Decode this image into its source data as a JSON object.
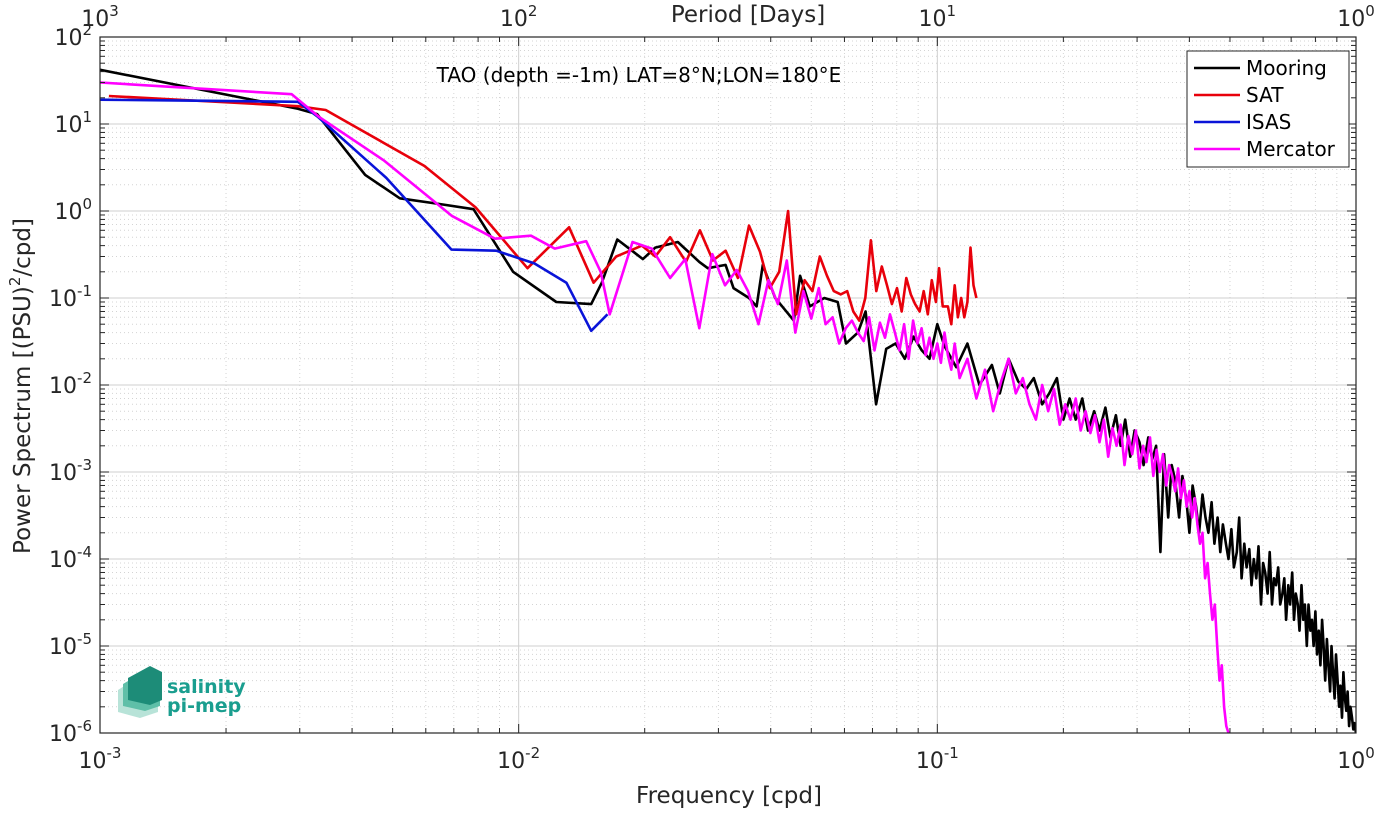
{
  "chart_data": {
    "type": "line",
    "title": "TAO (depth =-1m) LAT=8°N;LON=180°E",
    "xlabel": "Frequency [cpd]",
    "ylabel_main": "Power Spectrum [(PSU)",
    "ylabel_sup": "2",
    "ylabel_tail": "/cpd]",
    "x2label": "Period [Days]",
    "xscale": "log",
    "yscale": "log",
    "xlim": [
      0.001,
      1
    ],
    "ylim": [
      1e-06,
      100
    ],
    "grid": true,
    "minor_grid": true,
    "legend_position": "top-right",
    "x_ticks": [
      {
        "value": 0.001,
        "base": "10",
        "exp": "-3"
      },
      {
        "value": 0.01,
        "base": "10",
        "exp": "-2"
      },
      {
        "value": 0.1,
        "base": "10",
        "exp": "-1"
      },
      {
        "value": 1,
        "base": "10",
        "exp": "0"
      }
    ],
    "x2_ticks": [
      {
        "value": 0.001,
        "base": "10",
        "exp": "3"
      },
      {
        "value": 0.01,
        "base": "10",
        "exp": "2"
      },
      {
        "value": 0.1,
        "base": "10",
        "exp": "1"
      },
      {
        "value": 1,
        "base": "10",
        "exp": "0"
      }
    ],
    "y_ticks": [
      {
        "value": 100,
        "base": "10",
        "exp": "2"
      },
      {
        "value": 10,
        "base": "10",
        "exp": "1"
      },
      {
        "value": 1,
        "base": "10",
        "exp": "0"
      },
      {
        "value": 0.1,
        "base": "10",
        "exp": "-1"
      },
      {
        "value": 0.01,
        "base": "10",
        "exp": "-2"
      },
      {
        "value": 0.001,
        "base": "10",
        "exp": "-3"
      },
      {
        "value": 0.0001,
        "base": "10",
        "exp": "-4"
      },
      {
        "value": 1e-05,
        "base": "10",
        "exp": "-5"
      },
      {
        "value": 1e-06,
        "base": "10",
        "exp": "-6"
      }
    ],
    "series": [
      {
        "name": "Mooring",
        "color": "#000000",
        "x": [
          0.001,
          0.00297,
          0.0033,
          0.0043,
          0.0052,
          0.0065,
          0.0078,
          0.0097,
          0.0123,
          0.0149,
          0.0158,
          0.0172,
          0.0198,
          0.0212,
          0.024,
          0.027,
          0.0283,
          0.0312,
          0.0326,
          0.0355,
          0.037,
          0.0383,
          0.041,
          0.0426,
          0.0454,
          0.047,
          0.0496,
          0.0537,
          0.0578,
          0.0605,
          0.0646,
          0.0674,
          0.0714,
          0.0755,
          0.0795,
          0.0836,
          0.0877,
          0.0918,
          0.0958,
          0.1,
          0.104,
          0.111,
          0.118,
          0.126,
          0.135,
          0.141,
          0.148,
          0.156,
          0.163,
          0.17,
          0.178,
          0.185,
          0.193,
          0.2,
          0.207,
          0.214,
          0.222,
          0.229,
          0.237,
          0.244,
          0.252,
          0.259,
          0.267,
          0.274,
          0.281,
          0.289,
          0.296,
          0.304,
          0.311,
          0.319,
          0.326,
          0.333,
          0.341,
          0.348,
          0.356,
          0.363,
          0.37,
          0.378,
          0.385,
          0.393,
          0.4,
          0.407,
          0.415,
          0.422,
          0.43,
          0.437,
          0.444,
          0.452,
          0.459,
          0.467,
          0.474,
          0.481,
          0.489,
          0.496,
          0.504,
          0.511,
          0.519,
          0.526,
          0.533,
          0.541,
          0.548,
          0.556,
          0.563,
          0.57,
          0.578,
          0.585,
          0.593,
          0.6,
          0.607,
          0.615,
          0.622,
          0.63,
          0.637,
          0.644,
          0.652,
          0.659,
          0.667,
          0.674,
          0.681,
          0.689,
          0.696,
          0.704,
          0.711,
          0.718,
          0.726,
          0.733,
          0.741,
          0.748,
          0.755,
          0.763,
          0.77,
          0.778,
          0.785,
          0.792,
          0.8,
          0.807,
          0.815,
          0.822,
          0.83,
          0.837,
          0.844,
          0.852,
          0.859,
          0.867,
          0.874,
          0.881,
          0.889,
          0.896,
          0.904,
          0.911,
          0.918,
          0.926,
          0.933,
          0.941,
          0.948,
          0.955,
          0.963,
          0.97,
          0.978,
          0.985,
          0.992,
          1.0
        ],
        "y": [
          42,
          15,
          13,
          2.6,
          1.4,
          1.2,
          1.05,
          0.2,
          0.09,
          0.085,
          0.15,
          0.47,
          0.28,
          0.38,
          0.44,
          0.26,
          0.22,
          0.24,
          0.13,
          0.1,
          0.08,
          0.24,
          0.1,
          0.08,
          0.055,
          0.18,
          0.08,
          0.1,
          0.09,
          0.03,
          0.04,
          0.07,
          0.006,
          0.026,
          0.03,
          0.02,
          0.036,
          0.025,
          0.02,
          0.05,
          0.028,
          0.016,
          0.03,
          0.01,
          0.017,
          0.008,
          0.02,
          0.011,
          0.009,
          0.012,
          0.006,
          0.008,
          0.012,
          0.004,
          0.007,
          0.004,
          0.007,
          0.003,
          0.005,
          0.003,
          0.0055,
          0.0025,
          0.0045,
          0.002,
          0.004,
          0.0015,
          0.003,
          0.0022,
          0.0012,
          0.0025,
          0.0014,
          0.002,
          0.00012,
          0.0016,
          0.0003,
          0.0012,
          0.0008,
          0.0003,
          0.0009,
          0.0005,
          0.0002,
          0.0007,
          0.0004,
          0.0002,
          0.00055,
          0.0003,
          0.0002,
          0.00045,
          0.00015,
          0.0003,
          0.00012,
          0.00025,
          0.00015,
          0.0001,
          0.00022,
          8e-05,
          0.00012,
          0.0003,
          6e-05,
          0.00015,
          8e-05,
          0.00013,
          5e-05,
          0.0001,
          6e-05,
          0.00014,
          3e-05,
          9e-05,
          7e-05,
          4e-05,
          0.00012,
          3e-05,
          6e-05,
          5e-05,
          8e-05,
          3e-05,
          4e-05,
          6e-05,
          2e-05,
          5e-05,
          3e-05,
          7e-05,
          2e-05,
          4e-05,
          3e-05,
          1.5e-05,
          5e-05,
          2e-05,
          3e-05,
          1e-05,
          3e-05,
          1.5e-05,
          2e-05,
          1e-05,
          2.5e-05,
          8e-06,
          1.5e-05,
          6e-06,
          2e-05,
          1e-05,
          4e-06,
          1.2e-05,
          6e-06,
          3e-06,
          1e-05,
          5e-06,
          2.5e-06,
          8e-06,
          4e-06,
          2e-06,
          3.5e-06,
          1.5e-06,
          5e-06,
          2.5e-06,
          1.8e-06,
          3e-06,
          1.2e-06,
          2e-06,
          1.5e-06,
          1.1e-06,
          1.3e-06,
          1e-06
        ]
      },
      {
        "name": "SAT",
        "color": "#e8000b",
        "x": [
          0.00105,
          0.00297,
          0.00346,
          0.00595,
          0.00789,
          0.0105,
          0.0132,
          0.0151,
          0.0171,
          0.0197,
          0.0212,
          0.023,
          0.0251,
          0.0271,
          0.0291,
          0.0312,
          0.0334,
          0.0355,
          0.0377,
          0.0398,
          0.0419,
          0.044,
          0.046,
          0.0482,
          0.0503,
          0.0524,
          0.0545,
          0.0566,
          0.0588,
          0.0609,
          0.063,
          0.0651,
          0.0673,
          0.0694,
          0.0715,
          0.0737,
          0.0758,
          0.0779,
          0.0801,
          0.0822,
          0.0843,
          0.0864,
          0.0885,
          0.0907,
          0.0928,
          0.0949,
          0.097,
          0.0992,
          0.101,
          0.103,
          0.106,
          0.108,
          0.11,
          0.112,
          0.114,
          0.116,
          0.118,
          0.12,
          0.122,
          0.124
        ],
        "y": [
          21,
          16,
          14.5,
          3.3,
          1.1,
          0.22,
          0.65,
          0.15,
          0.3,
          0.4,
          0.3,
          0.5,
          0.26,
          0.6,
          0.27,
          0.35,
          0.17,
          0.68,
          0.34,
          0.13,
          0.2,
          1,
          0.065,
          0.16,
          0.12,
          0.3,
          0.18,
          0.12,
          0.11,
          0.12,
          0.07,
          0.055,
          0.1,
          0.46,
          0.12,
          0.23,
          0.14,
          0.085,
          0.13,
          0.07,
          0.17,
          0.11,
          0.085,
          0.07,
          0.12,
          0.065,
          0.16,
          0.09,
          0.22,
          0.08,
          0.08,
          0.05,
          0.14,
          0.06,
          0.1,
          0.06,
          0.09,
          0.38,
          0.14,
          0.1
        ]
      },
      {
        "name": "ISAS",
        "color": "#0a14d8",
        "x": [
          0.001,
          0.00297,
          0.00332,
          0.00483,
          0.00691,
          0.00884,
          0.0109,
          0.013,
          0.0149,
          0.0163
        ],
        "y": [
          19,
          18,
          12,
          2.4,
          0.36,
          0.35,
          0.25,
          0.15,
          0.042,
          0.065
        ]
      },
      {
        "name": "Mercator",
        "color": "#ff00ff",
        "x": [
          0.001,
          0.00287,
          0.00334,
          0.00477,
          0.00692,
          0.00878,
          0.0107,
          0.0122,
          0.0145,
          0.0157,
          0.0165,
          0.0187,
          0.0208,
          0.023,
          0.025,
          0.027,
          0.029,
          0.0311,
          0.0332,
          0.0353,
          0.0374,
          0.0395,
          0.0416,
          0.0437,
          0.0458,
          0.0479,
          0.05,
          0.0521,
          0.0541,
          0.0562,
          0.0583,
          0.0604,
          0.0625,
          0.0646,
          0.0667,
          0.0687,
          0.0708,
          0.0729,
          0.075,
          0.0771,
          0.0792,
          0.0812,
          0.0833,
          0.0854,
          0.0875,
          0.0896,
          0.0917,
          0.0938,
          0.0958,
          0.0979,
          0.1,
          0.102,
          0.104,
          0.106,
          0.108,
          0.11,
          0.113,
          0.118,
          0.124,
          0.13,
          0.136,
          0.142,
          0.148,
          0.154,
          0.16,
          0.166,
          0.172,
          0.178,
          0.184,
          0.19,
          0.196,
          0.202,
          0.208,
          0.214,
          0.22,
          0.226,
          0.232,
          0.238,
          0.244,
          0.25,
          0.256,
          0.262,
          0.268,
          0.274,
          0.28,
          0.286,
          0.292,
          0.298,
          0.304,
          0.31,
          0.316,
          0.322,
          0.328,
          0.334,
          0.34,
          0.346,
          0.352,
          0.358,
          0.364,
          0.37,
          0.376,
          0.382,
          0.388,
          0.394,
          0.4,
          0.406,
          0.412,
          0.418,
          0.424,
          0.43,
          0.436,
          0.442,
          0.448,
          0.454,
          0.46,
          0.466,
          0.472,
          0.478,
          0.484,
          0.49,
          0.496
        ],
        "y": [
          30,
          22,
          12,
          3.8,
          0.88,
          0.48,
          0.52,
          0.37,
          0.45,
          0.2,
          0.065,
          0.44,
          0.37,
          0.17,
          0.28,
          0.045,
          0.32,
          0.14,
          0.21,
          0.12,
          0.05,
          0.16,
          0.085,
          0.27,
          0.04,
          0.12,
          0.058,
          0.13,
          0.05,
          0.06,
          0.03,
          0.045,
          0.055,
          0.04,
          0.032,
          0.06,
          0.025,
          0.052,
          0.035,
          0.065,
          0.04,
          0.025,
          0.05,
          0.02,
          0.055,
          0.03,
          0.045,
          0.022,
          0.035,
          0.02,
          0.03,
          0.018,
          0.04,
          0.022,
          0.015,
          0.03,
          0.012,
          0.02,
          0.007,
          0.015,
          0.005,
          0.011,
          0.02,
          0.008,
          0.012,
          0.006,
          0.004,
          0.01,
          0.005,
          0.009,
          0.0035,
          0.006,
          0.004,
          0.007,
          0.003,
          0.005,
          0.0028,
          0.0045,
          0.0022,
          0.004,
          0.0015,
          0.0032,
          0.002,
          0.0035,
          0.0012,
          0.0026,
          0.0016,
          0.003,
          0.0011,
          0.002,
          0.0013,
          0.0025,
          0.0009,
          0.0018,
          0.001,
          0.0016,
          0.0007,
          0.0012,
          0.0009,
          0.0006,
          0.0011,
          0.0005,
          0.0008,
          0.0004,
          0.0006,
          0.0003,
          0.0005,
          0.00025,
          0.00015,
          0.0002,
          6e-05,
          9e-05,
          4e-05,
          2e-05,
          3e-05,
          1e-05,
          4e-06,
          6e-06,
          2e-06,
          1.2e-06,
          1e-06
        ]
      }
    ]
  },
  "logo": {
    "line1": "salinity",
    "line2": "pi-mep"
  }
}
